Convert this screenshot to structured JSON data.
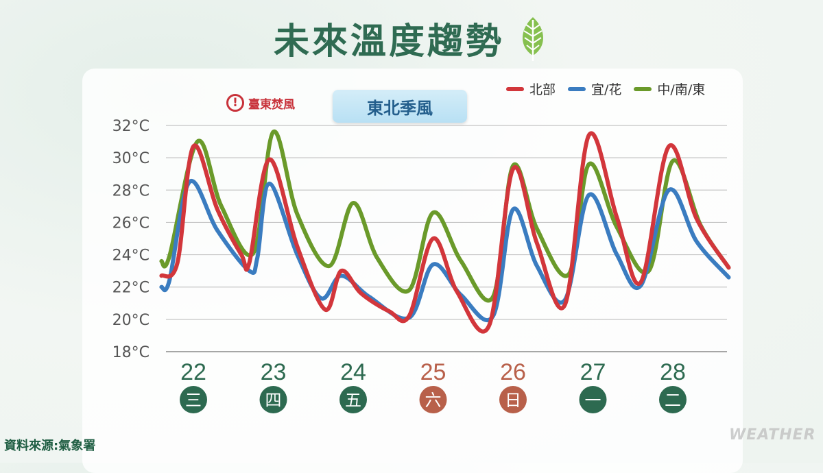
{
  "title": "未來溫度趨勢",
  "warning_label": "臺東焚風",
  "monsoon_label": "東北季風",
  "source": "資料來源:氣象署",
  "watermark": "WEATHER",
  "colors": {
    "north": "#d2363b",
    "yilan_hualien": "#3a7cc0",
    "central_south_east": "#6a9a2a",
    "title": "#2f6b52",
    "weekday_circle": "#2d6a50",
    "weekend_circle": "#b8604a"
  },
  "chart_data": {
    "type": "line",
    "ylim": [
      18,
      32
    ],
    "y_ticks": [
      "18°C",
      "20°C",
      "22°C",
      "24°C",
      "26°C",
      "28°C",
      "30°C",
      "32°C"
    ],
    "grid": true,
    "legend_position": "top-right",
    "days": [
      {
        "date": "22",
        "weekday": "三",
        "weekend": false
      },
      {
        "date": "23",
        "weekday": "四",
        "weekend": false
      },
      {
        "date": "24",
        "weekday": "五",
        "weekend": false
      },
      {
        "date": "25",
        "weekday": "六",
        "weekend": true
      },
      {
        "date": "26",
        "weekday": "日",
        "weekend": true
      },
      {
        "date": "27",
        "weekday": "一",
        "weekend": false
      },
      {
        "date": "28",
        "weekday": "二",
        "weekend": false
      }
    ],
    "series": [
      {
        "name": "北部",
        "color": "#d2363b",
        "points": [
          [
            21.6,
            22.7
          ],
          [
            21.8,
            23.5
          ],
          [
            22.0,
            30.7
          ],
          [
            22.3,
            26.8
          ],
          [
            22.6,
            24.0
          ],
          [
            22.7,
            23.5
          ],
          [
            22.95,
            29.9
          ],
          [
            23.3,
            24.5
          ],
          [
            23.65,
            20.6
          ],
          [
            23.85,
            23.0
          ],
          [
            24.1,
            21.6
          ],
          [
            24.45,
            20.5
          ],
          [
            24.7,
            20.2
          ],
          [
            25.0,
            25.0
          ],
          [
            25.3,
            21.7
          ],
          [
            25.7,
            19.6
          ],
          [
            26.0,
            29.3
          ],
          [
            26.3,
            24.7
          ],
          [
            26.65,
            20.9
          ],
          [
            26.95,
            31.4
          ],
          [
            27.3,
            26.3
          ],
          [
            27.6,
            22.3
          ],
          [
            27.95,
            30.7
          ],
          [
            28.3,
            26.2
          ],
          [
            28.7,
            23.2
          ]
        ]
      },
      {
        "name": "宜/花",
        "color": "#3a7cc0",
        "points": [
          [
            21.6,
            22.0
          ],
          [
            21.7,
            22.4
          ],
          [
            21.95,
            28.5
          ],
          [
            22.3,
            25.5
          ],
          [
            22.7,
            23.0
          ],
          [
            22.8,
            23.8
          ],
          [
            22.95,
            28.4
          ],
          [
            23.3,
            24.0
          ],
          [
            23.6,
            21.3
          ],
          [
            23.85,
            22.7
          ],
          [
            24.2,
            21.4
          ],
          [
            24.7,
            20.1
          ],
          [
            25.0,
            23.4
          ],
          [
            25.35,
            21.5
          ],
          [
            25.75,
            20.2
          ],
          [
            26.0,
            26.8
          ],
          [
            26.3,
            23.3
          ],
          [
            26.65,
            21.2
          ],
          [
            26.95,
            27.7
          ],
          [
            27.3,
            24.0
          ],
          [
            27.6,
            22.1
          ],
          [
            27.95,
            28.0
          ],
          [
            28.3,
            24.8
          ],
          [
            28.7,
            22.6
          ]
        ]
      },
      {
        "name": "中/南/東",
        "color": "#6a9a2a",
        "points": [
          [
            21.6,
            23.6
          ],
          [
            21.7,
            23.9
          ],
          [
            22.05,
            31.0
          ],
          [
            22.35,
            27.0
          ],
          [
            22.75,
            24.1
          ],
          [
            23.0,
            31.6
          ],
          [
            23.3,
            26.5
          ],
          [
            23.7,
            23.3
          ],
          [
            24.0,
            27.2
          ],
          [
            24.3,
            23.8
          ],
          [
            24.7,
            21.8
          ],
          [
            25.0,
            26.6
          ],
          [
            25.35,
            23.6
          ],
          [
            25.75,
            21.4
          ],
          [
            26.0,
            29.5
          ],
          [
            26.3,
            25.6
          ],
          [
            26.7,
            22.8
          ],
          [
            26.95,
            29.6
          ],
          [
            27.3,
            25.7
          ],
          [
            27.7,
            23.0
          ],
          [
            28.0,
            29.8
          ],
          [
            28.35,
            25.8
          ],
          [
            28.7,
            23.2
          ]
        ]
      }
    ]
  }
}
